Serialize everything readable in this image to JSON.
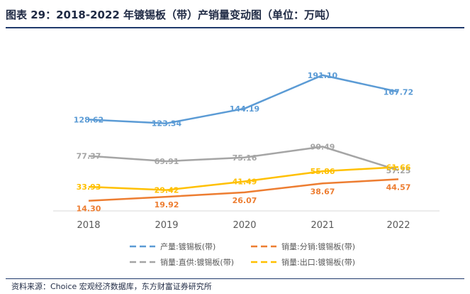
{
  "figure": {
    "title": "图表 29：2018-2022 年镀锡板（带）产销量变动图（单位：万吨）",
    "source": "资料来源：Choice 宏观经济数据库，东方财富证券研究所"
  },
  "chart_data": {
    "type": "line",
    "x": [
      "2018",
      "2019",
      "2020",
      "2021",
      "2022"
    ],
    "ylim": [
      0,
      200
    ],
    "grid": false,
    "legend_position": "bottom",
    "series": [
      {
        "name": "产量:镀锡板(带)",
        "color": "#5b9bd5",
        "dash": "long-dash",
        "values": [
          128.62,
          123.34,
          144.19,
          191.1,
          167.72
        ],
        "labels": [
          "128.62",
          "123.34",
          "144.19",
          "191.10",
          "167.72"
        ]
      },
      {
        "name": "销量:分销:镀锡板(带)",
        "color": "#ed7d31",
        "dash": "long-dash",
        "values": [
          14.3,
          19.92,
          26.07,
          38.67,
          44.57
        ],
        "labels": [
          "14.30",
          "19.92",
          "26.07",
          "38.67",
          "44.57"
        ]
      },
      {
        "name": "销量:直供:镀锡板(带)",
        "color": "#a5a5a5",
        "dash": "long-dash",
        "values": [
          77.37,
          69.91,
          75.16,
          90.49,
          57.25
        ],
        "labels": [
          "77.37",
          "69.91",
          "75.16",
          "90.49",
          "57.25"
        ]
      },
      {
        "name": "销量:出口:镀锡板(带)",
        "color": "#ffc000",
        "dash": "long-dash",
        "values": [
          33.93,
          29.42,
          41.49,
          55.86,
          61.66
        ],
        "labels": [
          "33.93",
          "29.42",
          "41.49",
          "55.86",
          "61.66"
        ]
      }
    ]
  }
}
